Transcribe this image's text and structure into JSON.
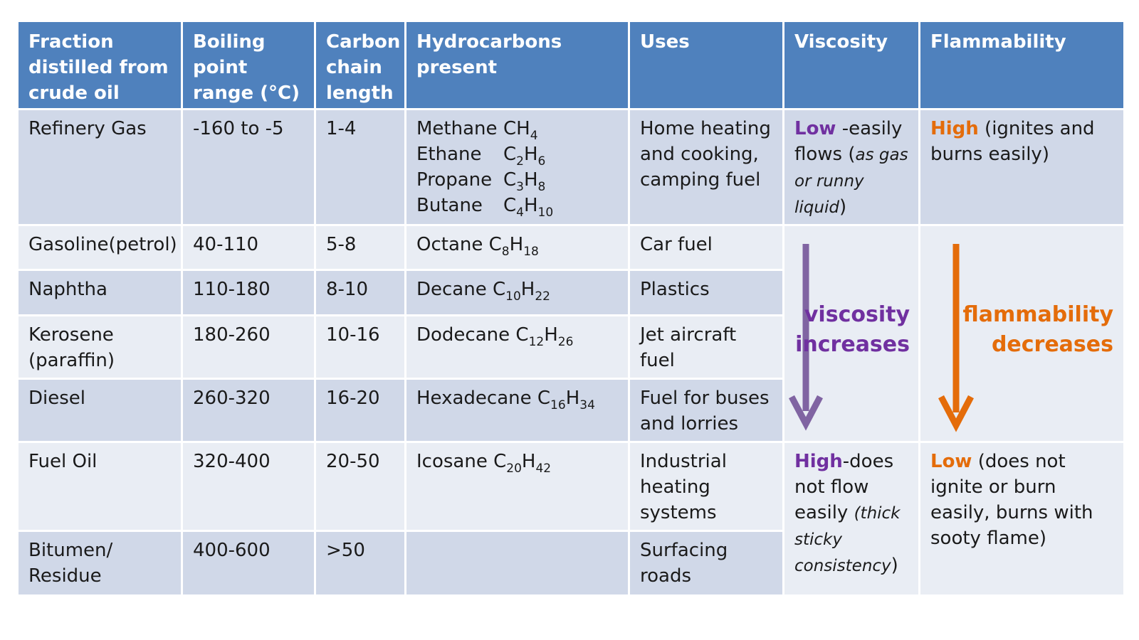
{
  "headers": [
    "Fraction distilled from crude oil",
    "Boiling point range (°C)",
    "Carbon chain length",
    "Hydrocarbons present",
    "Uses",
    "Viscosity",
    "Flammability"
  ],
  "rows": [
    {
      "fraction": "Refinery Gas",
      "boiling": "-160 to -5",
      "carbon": "1-4",
      "hydrocarbons": [
        {
          "name": "Methane",
          "formula": [
            [
              "CH",
              "4"
            ]
          ]
        },
        {
          "name": "Ethane",
          "formula": [
            [
              "C",
              "2"
            ],
            [
              "H",
              "6"
            ]
          ]
        },
        {
          "name": "Propane",
          "formula": [
            [
              "C",
              "3"
            ],
            [
              "H",
              "8"
            ]
          ]
        },
        {
          "name": "Butane",
          "formula": [
            [
              "C",
              "4"
            ],
            [
              "H",
              "10"
            ]
          ]
        }
      ],
      "uses": "Home heating and cooking, camping fuel"
    },
    {
      "fraction": "Gasoline(petrol)",
      "boiling": "40-110",
      "carbon": "5-8",
      "hydrocarbons": [
        {
          "name": "Octane",
          "formula": [
            [
              "C",
              "8"
            ],
            [
              "H",
              "18"
            ]
          ]
        }
      ],
      "uses": "Car fuel"
    },
    {
      "fraction": "Naphtha",
      "boiling": "110-180",
      "carbon": "8-10",
      "hydrocarbons": [
        {
          "name": "Decane",
          "formula": [
            [
              "C",
              "10"
            ],
            [
              "H",
              "22"
            ]
          ]
        }
      ],
      "uses": "Plastics"
    },
    {
      "fraction": "Kerosene (paraffin)",
      "boiling": "180-260",
      "carbon": "10-16",
      "hydrocarbons": [
        {
          "name": "Dodecane",
          "formula": [
            [
              "C",
              "12"
            ],
            [
              "H",
              "26"
            ]
          ]
        }
      ],
      "uses": "Jet aircraft fuel"
    },
    {
      "fraction": "Diesel",
      "boiling": "260-320",
      "carbon": "16-20",
      "hydrocarbons": [
        {
          "name": "Hexadecane",
          "formula": [
            [
              "C",
              "16"
            ],
            [
              "H",
              "34"
            ]
          ]
        }
      ],
      "uses": "Fuel for buses and lorries"
    },
    {
      "fraction": "Fuel Oil",
      "boiling": "320-400",
      "carbon": "20-50",
      "hydrocarbons": [
        {
          "name": "Icosane",
          "formula": [
            [
              "C",
              "20"
            ],
            [
              "H",
              "42"
            ]
          ]
        }
      ],
      "uses": "Industrial heating systems"
    },
    {
      "fraction": "Bitumen/ Residue",
      "boiling": "400-600",
      "carbon": ">50",
      "hydrocarbons": [],
      "uses": "Surfacing roads"
    }
  ],
  "viscosity": {
    "top_keyword": "Low",
    "top_text": " -easily flows (",
    "top_italic": "as gas or runny liquid",
    "top_close": ")",
    "arrow_label_1": "viscosity",
    "arrow_label_2": "increases",
    "bottom_keyword": "High",
    "bottom_text": "-does not flow easily ",
    "bottom_italic": "(thick sticky consistency",
    "bottom_close": ")"
  },
  "flammability": {
    "top_keyword": "High",
    "top_text": " (ignites and burns easily)",
    "arrow_label_1": "flammability",
    "arrow_label_2": "decreases",
    "bottom_keyword": "Low",
    "bottom_text": " (does not ignite or burn easily, burns with sooty flame)"
  },
  "colors": {
    "header_bg": "#4f81bd",
    "row_dark": "#d0d8e8",
    "row_light": "#e9edf4",
    "viscosity_accent": "#7030a0",
    "viscosity_arrow": "#8064a2",
    "flammability_accent": "#e46c0a"
  }
}
